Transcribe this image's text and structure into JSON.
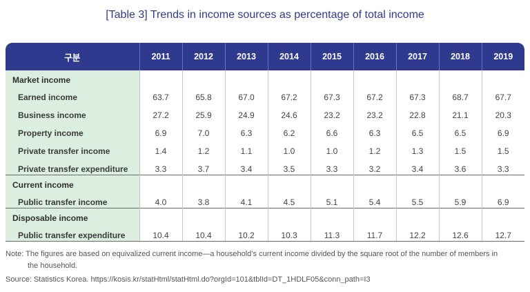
{
  "title": "[Table 3] Trends in income sources as percentage of total income",
  "table": {
    "corner_header": "구분",
    "years": [
      "2011",
      "2012",
      "2013",
      "2014",
      "2015",
      "2016",
      "2017",
      "2018",
      "2019"
    ],
    "groups": [
      {
        "name": "Market income",
        "rows": [
          {
            "label": "Earned income",
            "values": [
              "63.7",
              "65.8",
              "67.0",
              "67.2",
              "67.3",
              "67.2",
              "67.3",
              "68.7",
              "67.7"
            ]
          },
          {
            "label": "Business income",
            "values": [
              "27.2",
              "25.9",
              "24.9",
              "24.6",
              "23.2",
              "23.2",
              "22.8",
              "21.1",
              "20.3"
            ]
          },
          {
            "label": "Property income",
            "values": [
              "6.9",
              "7.0",
              "6.3",
              "6.2",
              "6.6",
              "6.3",
              "6.5",
              "6.5",
              "6.9"
            ]
          },
          {
            "label": "Private transfer income",
            "values": [
              "1.4",
              "1.2",
              "1.1",
              "1.0",
              "1.0",
              "1.2",
              "1.3",
              "1.5",
              "1.5"
            ]
          },
          {
            "label": "Private transfer expenditure",
            "values": [
              "3.3",
              "3.7",
              "3.4",
              "3.5",
              "3.3",
              "3.2",
              "3.4",
              "3.6",
              "3.3"
            ]
          }
        ]
      },
      {
        "name": "Current income",
        "rows": [
          {
            "label": "Public transfer income",
            "values": [
              "4.0",
              "3.8",
              "4.1",
              "4.5",
              "5.1",
              "5.4",
              "5.5",
              "5.9",
              "6.9"
            ]
          }
        ]
      },
      {
        "name": "Disposable income",
        "rows": [
          {
            "label": "Public transfer expenditure",
            "values": [
              "10.4",
              "10.4",
              "10.2",
              "10.3",
              "11.3",
              "11.7",
              "12.2",
              "12.6",
              "12.7"
            ]
          }
        ]
      }
    ]
  },
  "note": {
    "line1": "Note: The figures are based on equivalized current income—a household’s current income divided by the square root of the number of members in",
    "line2": "the household."
  },
  "source": "Source: Statistics Korea. https://kosis.kr/statHtml/statHtml.do?orgId=101&tblId=DT_1HDLF05&conn_path=I3",
  "colors": {
    "header_bg": "#2f3a8f",
    "label_bg": "#dbeee0",
    "title": "#2f3a8f"
  }
}
